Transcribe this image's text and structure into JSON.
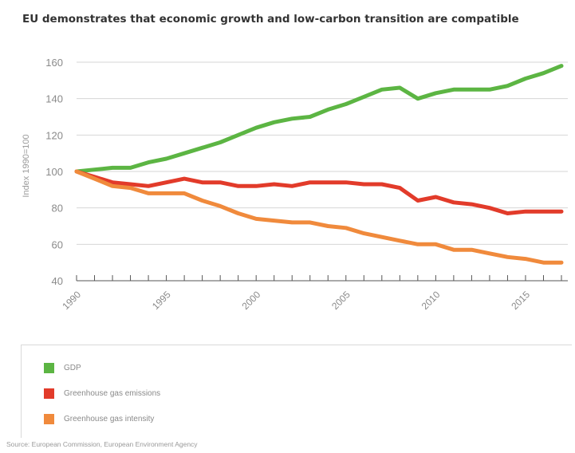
{
  "title": "EU demonstrates that economic growth and low-carbon transition are compatible",
  "source": "Source: European Commission, European Environment Agency",
  "chart_data": {
    "type": "line",
    "title": "EU demonstrates that economic growth and low-carbon transition are compatible",
    "ylabel": "Index 1990=100",
    "xlabel": "",
    "xlim": [
      1990,
      2017
    ],
    "ylim": [
      40,
      160
    ],
    "yticks": [
      40,
      60,
      80,
      100,
      120,
      140,
      160
    ],
    "xtick_labels": [
      "1990",
      "1995",
      "2000",
      "2005",
      "2010",
      "2015"
    ],
    "grid": "horizontal",
    "legend_position": "bottom",
    "x": [
      1990,
      1991,
      1992,
      1993,
      1994,
      1995,
      1996,
      1997,
      1998,
      1999,
      2000,
      2001,
      2002,
      2003,
      2004,
      2005,
      2006,
      2007,
      2008,
      2009,
      2010,
      2011,
      2012,
      2013,
      2014,
      2015,
      2016,
      2017
    ],
    "series": [
      {
        "name": "GDP",
        "color": "#5cb543",
        "values": [
          100,
          101,
          102,
          102,
          105,
          107,
          110,
          113,
          116,
          120,
          124,
          127,
          129,
          130,
          134,
          137,
          141,
          145,
          146,
          140,
          143,
          145,
          145,
          145,
          147,
          151,
          154,
          158
        ]
      },
      {
        "name": "Greenhouse gas emissions",
        "color": "#e23b2a",
        "values": [
          100,
          97,
          94,
          93,
          92,
          94,
          96,
          94,
          94,
          92,
          92,
          93,
          92,
          94,
          94,
          94,
          93,
          93,
          91,
          84,
          86,
          83,
          82,
          80,
          77,
          78,
          78,
          78
        ]
      },
      {
        "name": "Greenhouse gas intensity",
        "color": "#f08a3c",
        "values": [
          100,
          96,
          92,
          91,
          88,
          88,
          88,
          84,
          81,
          77,
          74,
          73,
          72,
          72,
          70,
          69,
          66,
          64,
          62,
          60,
          60,
          57,
          57,
          55,
          53,
          52,
          50,
          50
        ]
      }
    ]
  }
}
